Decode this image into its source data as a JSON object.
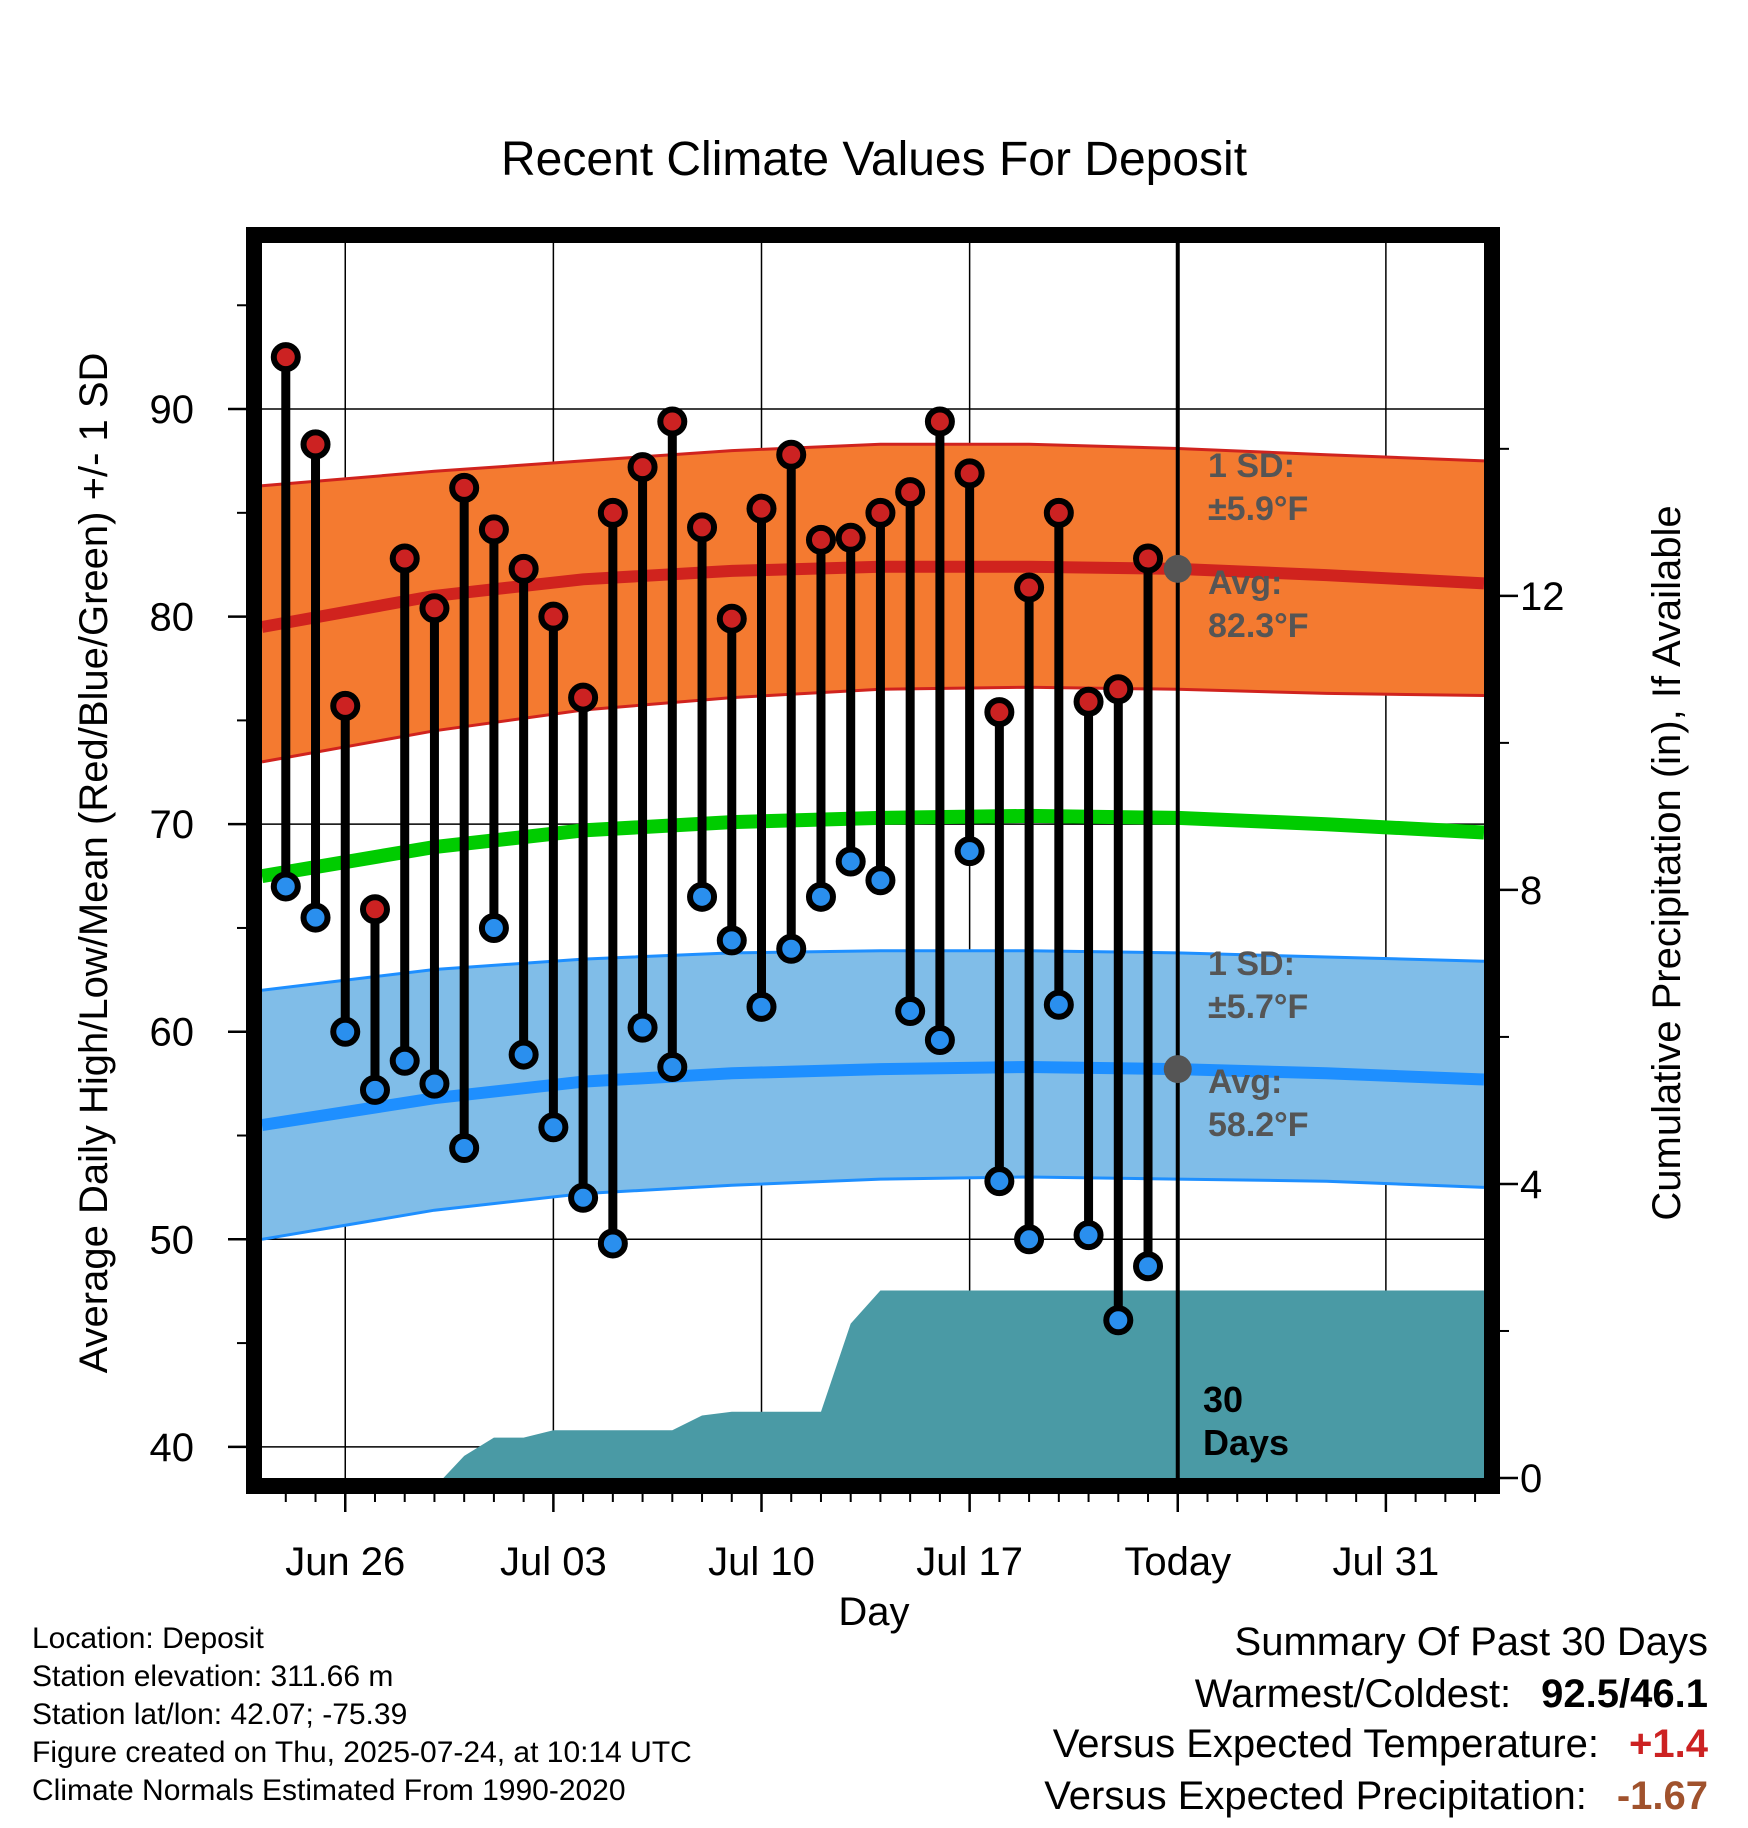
{
  "chart_data": {
    "type": "line",
    "title": "Recent Climate Values For Deposit",
    "xlabel": "Day",
    "ylabel": "Average Daily High/Low/Mean (Red/Blue/Green) +/- 1 SD",
    "y2label": "Cumulative Precipitation (in), If Available",
    "x_tick_labels": [
      "Jun 26",
      "Jul 03",
      "Jul 10",
      "Jul 17",
      "Today",
      "Jul 31"
    ],
    "x_tick_days": [
      2,
      9,
      16,
      23,
      30,
      37
    ],
    "xlim": [
      -0.8,
      40.3
    ],
    "ylim": [
      38.5,
      98
    ],
    "y_ticks": [
      40,
      50,
      60,
      70,
      80,
      90
    ],
    "y2lim": [
      0,
      16.8
    ],
    "y2_ticks": [
      0,
      4,
      8,
      12
    ],
    "today_day": 30,
    "days": [
      0,
      1,
      2,
      3,
      4,
      5,
      6,
      7,
      8,
      9,
      10,
      11,
      12,
      13,
      14,
      15,
      16,
      17,
      18,
      19,
      20,
      21,
      22,
      23,
      24,
      25,
      26,
      27,
      28,
      29
    ],
    "highs": [
      92.5,
      88.3,
      75.7,
      65.9,
      82.8,
      80.4,
      86.2,
      84.2,
      82.3,
      80.0,
      76.1,
      85.0,
      87.2,
      89.4,
      84.3,
      79.9,
      85.2,
      87.8,
      83.7,
      83.8,
      85.0,
      86.0,
      89.4,
      86.9,
      75.4,
      81.4,
      85.0,
      75.9,
      76.5,
      82.8
    ],
    "lows": [
      67.0,
      65.5,
      60.0,
      57.2,
      58.6,
      57.5,
      54.4,
      65.0,
      58.9,
      55.4,
      52.0,
      49.8,
      60.2,
      58.3,
      66.5,
      64.4,
      61.2,
      64.0,
      66.5,
      68.2,
      67.3,
      61.0,
      59.6,
      68.7,
      52.8,
      50.0,
      61.3,
      50.2,
      46.1,
      48.7
    ],
    "normal_high": {
      "days": [
        -0.8,
        5,
        10,
        15,
        20,
        25,
        30,
        35,
        40.3
      ],
      "mean": [
        79.5,
        81.0,
        81.8,
        82.2,
        82.4,
        82.4,
        82.3,
        82.0,
        81.6
      ],
      "upper": [
        86.3,
        87.0,
        87.5,
        88.0,
        88.3,
        88.3,
        88.1,
        87.8,
        87.5
      ],
      "lower": [
        73.0,
        74.5,
        75.5,
        76.1,
        76.5,
        76.6,
        76.5,
        76.3,
        76.2
      ]
    },
    "normal_low": {
      "days": [
        -0.8,
        5,
        10,
        15,
        20,
        25,
        30,
        35,
        40.3
      ],
      "mean": [
        55.5,
        56.8,
        57.6,
        58.0,
        58.2,
        58.3,
        58.2,
        58.0,
        57.7
      ],
      "upper": [
        62.0,
        63.0,
        63.5,
        63.8,
        63.9,
        63.9,
        63.8,
        63.6,
        63.4
      ],
      "lower": [
        50.0,
        51.4,
        52.2,
        52.6,
        52.9,
        53.0,
        52.9,
        52.8,
        52.5
      ]
    },
    "normal_mean": {
      "days": [
        -0.8,
        5,
        10,
        15,
        20,
        25,
        30,
        35,
        40.3
      ],
      "values": [
        67.5,
        68.9,
        69.7,
        70.1,
        70.3,
        70.4,
        70.3,
        70.0,
        69.6
      ]
    },
    "precip_cumulative": {
      "days": [
        -0.8,
        5.3,
        6.0,
        7.0,
        8.0,
        9.0,
        10.0,
        11.0,
        12.0,
        13.0,
        14.0,
        15.0,
        16.0,
        17.0,
        18.0,
        19.0,
        20.0,
        40.3
      ],
      "values": [
        0,
        0,
        0.3,
        0.55,
        0.55,
        0.65,
        0.65,
        0.65,
        0.65,
        0.65,
        0.85,
        0.9,
        0.9,
        0.9,
        0.9,
        2.1,
        2.55,
        2.55
      ]
    },
    "annotations": {
      "high_sd_label": "1 SD:",
      "high_sd_value": "±5.9°F",
      "high_avg_label": "Avg:",
      "high_avg_value": "82.3°F",
      "low_sd_label": "1 SD:",
      "low_sd_value": "±5.7°F",
      "low_avg_label": "Avg:",
      "low_avg_value": "58.2°F",
      "days_label_1": "30",
      "days_label_2": "Days"
    },
    "colors": {
      "high_band": "#f47a30",
      "high_line": "#d0231e",
      "low_band": "#80bde8",
      "low_line": "#1e8fff",
      "mean_line": "#00cc00",
      "precip": "#4a9aa5",
      "high_marker": "#cc2222",
      "low_marker": "#2a8fee",
      "avg_marker": "#555555"
    }
  },
  "info": {
    "location": "Location: Deposit",
    "elevation": "Station elevation: 311.66 m",
    "latlon": "Station lat/lon: 42.07; -75.39",
    "created": "Figure created on Thu, 2025-07-24, at 10:14 UTC",
    "normals": "Climate Normals Estimated From 1990-2020"
  },
  "summary": {
    "heading": "Summary Of Past 30 Days",
    "warmest_label": "Warmest/Coldest:",
    "warmest_value": "92.5/46.1",
    "temp_label": "Versus Expected Temperature:",
    "temp_value": "+1.4",
    "temp_color": "#cc2222",
    "precip_label": "Versus Expected Precipitation:",
    "precip_value": "-1.67",
    "precip_color": "#a0522d"
  }
}
